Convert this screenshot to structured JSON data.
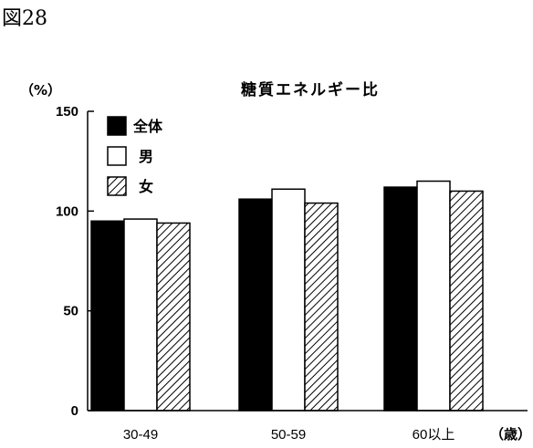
{
  "figure_label": "図28",
  "chart_data": {
    "type": "bar",
    "title": "糖質エネルギー比",
    "ylabel": "（%）",
    "xlabel_unit": "（歳）",
    "categories": [
      "30-49",
      "50-59",
      "60以上"
    ],
    "ylim": [
      0,
      150
    ],
    "yticks": [
      "0",
      "50",
      "100",
      "150"
    ],
    "grid": false,
    "legend_position": "top-left",
    "series": [
      {
        "name": "全体",
        "values": [
          95,
          106,
          112
        ],
        "fill": "#000000",
        "pattern": "solid"
      },
      {
        "name": "男",
        "values": [
          96,
          111,
          115
        ],
        "fill": "#ffffff",
        "pattern": "none"
      },
      {
        "name": "女",
        "values": [
          94,
          104,
          110
        ],
        "fill": "#ffffff",
        "pattern": "hatch"
      }
    ]
  }
}
